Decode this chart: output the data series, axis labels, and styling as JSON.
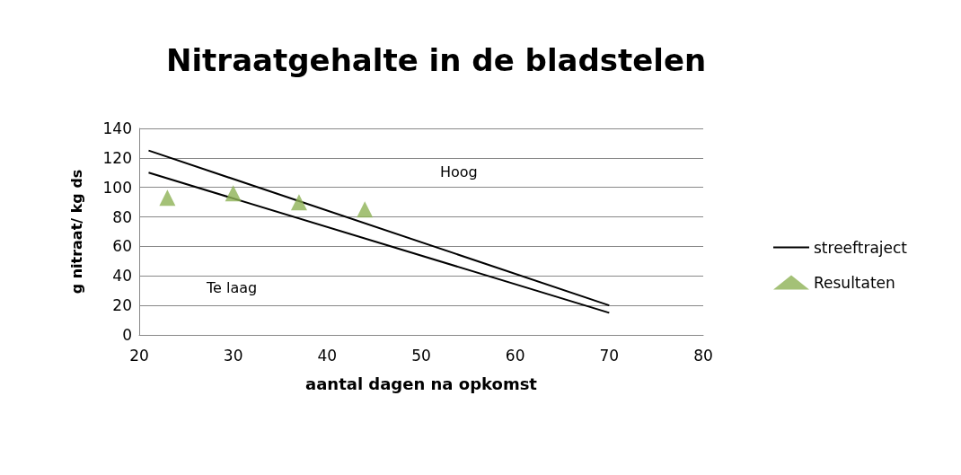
{
  "chart_data": {
    "type": "line",
    "title": "Nitraatgehalte in de bladstelen",
    "xlabel": "aantal dagen na opkomst",
    "ylabel": "g nitraat/ kg ds",
    "xlim": [
      20,
      80
    ],
    "xticks": [
      20,
      30,
      40,
      50,
      60,
      70,
      80
    ],
    "ylim": [
      0,
      140
    ],
    "yticks": [
      0,
      20,
      40,
      60,
      80,
      100,
      120,
      140
    ],
    "grid": "y",
    "legend": "right",
    "marker": "none",
    "line_style": "solid",
    "series": [
      {
        "name": "streeftraject",
        "color": "#000000",
        "x": [
          21,
          70
        ],
        "values": [
          125,
          20
        ]
      },
      {
        "color": "#000000",
        "x": [
          21,
          70
        ],
        "values": [
          110,
          15
        ]
      },
      {
        "name": "Resultaten",
        "type": "scatter",
        "marker": "triangle",
        "color": "#8db255",
        "x": [
          23,
          30,
          37,
          44
        ],
        "values": [
          93,
          96,
          90,
          85
        ]
      }
    ],
    "annotations": [
      "Hoog",
      "Te laag"
    ]
  }
}
